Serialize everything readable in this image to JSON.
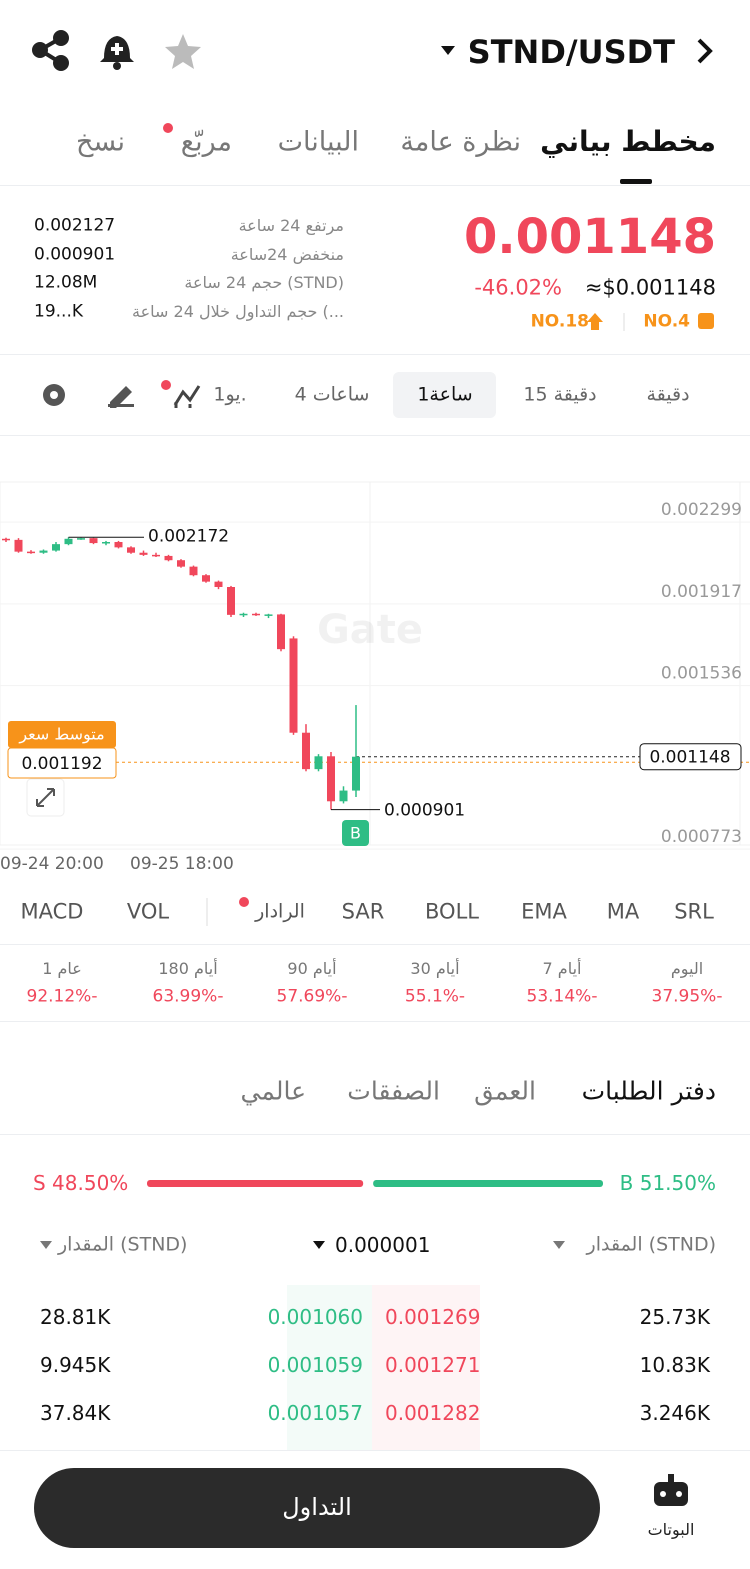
{
  "header": {
    "pair": "STND/USDT"
  },
  "tabs": [
    "مخطط بياني",
    "نظرة عامة",
    "البيانات",
    "مربّع",
    "نسخ"
  ],
  "price": {
    "last": "0.001148",
    "change": "-46.02%",
    "usd": "≈$0.001148",
    "rank_a": "NO.4",
    "rank_b": "NO.18"
  },
  "stats": [
    {
      "label": "مرتفع 24 ساعة",
      "value": "0.002127"
    },
    {
      "label": "منخفض 24ساعة",
      "value": "0.000901"
    },
    {
      "label": "حجم 24 ساعة (STND)",
      "value": "12.08M"
    },
    {
      "label": "حجم التداول خلال 24 ساعة (...",
      "value": "19...K"
    }
  ],
  "intervals": [
    "دقيقة",
    "15 دقيقة",
    "1ساعة",
    "4 ساعات",
    "1يو."
  ],
  "chart": {
    "type": "candlestick",
    "ylim": [
      0.000736,
      0.00243
    ],
    "yticks": [
      0.002299,
      0.001917,
      0.001536,
      0.000773
    ],
    "x_labels": [
      "09-24 20:00",
      "09-25 18:00"
    ],
    "colors": {
      "up": "#2ebd85",
      "down": "#f0475b"
    },
    "candles": [
      [
        0.002165,
        0.00217,
        0.00215,
        0.00216
      ],
      [
        0.00216,
        0.002168,
        0.0021,
        0.002105
      ],
      [
        0.002105,
        0.002112,
        0.002095,
        0.0021
      ],
      [
        0.0021,
        0.002115,
        0.002095,
        0.00211
      ],
      [
        0.00211,
        0.00215,
        0.002105,
        0.00214
      ],
      [
        0.00214,
        0.002172,
        0.002135,
        0.002165
      ],
      [
        0.002165,
        0.00217,
        0.00216,
        0.002168
      ],
      [
        0.002168,
        0.00217,
        0.00214,
        0.002145
      ],
      [
        0.002145,
        0.002155,
        0.002135,
        0.00215
      ],
      [
        0.00215,
        0.002155,
        0.00212,
        0.002125
      ],
      [
        0.002125,
        0.00213,
        0.002095,
        0.0021
      ],
      [
        0.0021,
        0.00211,
        0.002085,
        0.00209
      ],
      [
        0.00209,
        0.0021,
        0.00208,
        0.002085
      ],
      [
        0.002085,
        0.00209,
        0.00206,
        0.002065
      ],
      [
        0.002065,
        0.00207,
        0.00203,
        0.002035
      ],
      [
        0.002035,
        0.00204,
        0.00199,
        0.001995
      ],
      [
        0.001995,
        0.002,
        0.00196,
        0.001965
      ],
      [
        0.001965,
        0.00197,
        0.00193,
        0.00194
      ],
      [
        0.00194,
        0.001945,
        0.0018,
        0.00181
      ],
      [
        0.00181,
        0.00182,
        0.0018,
        0.001815
      ],
      [
        0.001815,
        0.00182,
        0.001805,
        0.00181
      ],
      [
        0.00181,
        0.001815,
        0.001795,
        0.001812
      ],
      [
        0.001812,
        0.001815,
        0.00164,
        0.00165
      ],
      [
        0.0017,
        0.00171,
        0.00125,
        0.00126
      ],
      [
        0.00126,
        0.0013,
        0.00108,
        0.00109
      ],
      [
        0.00109,
        0.00116,
        0.00108,
        0.00115
      ],
      [
        0.00115,
        0.00117,
        0.000901,
        0.00094
      ],
      [
        0.00094,
        0.00101,
        0.00093,
        0.00099
      ],
      [
        0.00099,
        0.001389,
        0.00096,
        0.001148
      ]
    ],
    "high_marker": 0.002172,
    "low_marker": 0.000901,
    "last_price": 0.001148,
    "avg_price": 0.001192,
    "avg_label": "متوسط سعر",
    "trade_marker": "B",
    "watermark": "Gate"
  },
  "indicators": [
    "SRL",
    "MA",
    "EMA",
    "BOLL",
    "SAR",
    "الرادار",
    "VOL",
    "MACD"
  ],
  "performance": [
    {
      "period": "اليوم",
      "change": "37.95%-"
    },
    {
      "period": "7 أيام",
      "change": "53.14%-"
    },
    {
      "period": "30 أيام",
      "change": "55.1%-"
    },
    {
      "period": "90 أيام",
      "change": "57.69%-"
    },
    {
      "period": "180 أيام",
      "change": "63.99%-"
    },
    {
      "period": "1 عام",
      "change": "92.12%-"
    }
  ],
  "book_tabs": [
    "دفتر الطلبات",
    "العمق",
    "الصفقات",
    "عالمي"
  ],
  "ratio": {
    "sell": 48.5,
    "sell_label": "S 48.50%",
    "buy": 51.5,
    "buy_label": "B 51.50%"
  },
  "book_header": {
    "left": "المقدار (STND)",
    "precision": "0.000001",
    "right": "المقدار (STND)"
  },
  "rows": [
    [
      "28.81K",
      "0.001060",
      "0.001269",
      "25.73K"
    ],
    [
      "9.945K",
      "0.001059",
      "0.001271",
      "10.83K"
    ],
    [
      "37.84K",
      "0.001057",
      "0.001282",
      "3.246K"
    ]
  ],
  "footer": {
    "trade": "التداول",
    "bots": "البوتات"
  }
}
